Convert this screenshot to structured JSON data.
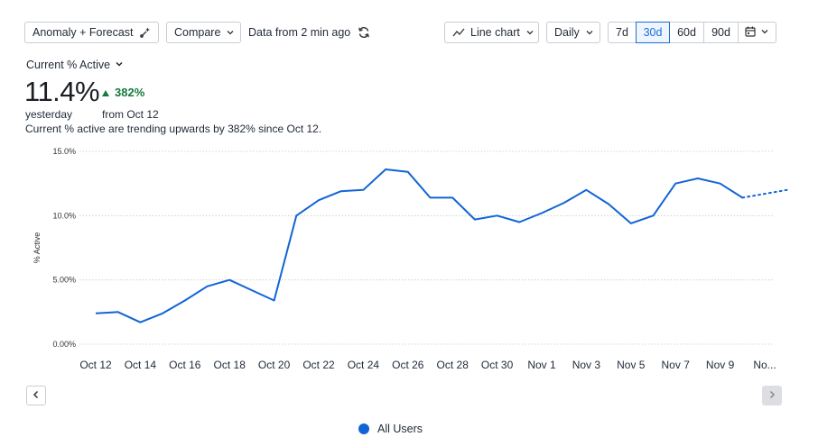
{
  "toolbar": {
    "anomaly_label": "Anomaly + Forecast",
    "compare_label": "Compare",
    "data_freshness": "Data from 2 min ago",
    "chart_type_label": "Line chart",
    "interval_label": "Daily",
    "ranges": [
      "7d",
      "30d",
      "60d",
      "90d"
    ],
    "active_range": "30d"
  },
  "metric": {
    "selector_label": "Current % Active",
    "value": "11.4%",
    "change": "382%",
    "value_caption": "yesterday",
    "change_caption": "from Oct 12",
    "summary": "Current % active are trending upwards by 382% since Oct 12."
  },
  "legend": {
    "label": "All Users",
    "color": "#1264d6"
  },
  "chart_data": {
    "type": "line",
    "ylabel": "% Active",
    "ylim": [
      0,
      15
    ],
    "yticks": [
      "0.00%",
      "5.00%",
      "10.0%",
      "15.0%"
    ],
    "ytick_values": [
      0,
      5,
      10,
      15
    ],
    "grid": true,
    "xticks": [
      "Oct 12",
      "Oct 14",
      "Oct 16",
      "Oct 18",
      "Oct 20",
      "Oct 22",
      "Oct 24",
      "Oct 26",
      "Oct 28",
      "Oct 30",
      "Nov 1",
      "Nov 3",
      "Nov 5",
      "Nov 7",
      "Nov 9",
      "No..."
    ],
    "series": [
      {
        "name": "All Users",
        "color": "#1264d6",
        "values": [
          2.4,
          2.5,
          1.7,
          2.4,
          3.4,
          4.5,
          5.0,
          4.2,
          3.4,
          10.0,
          11.2,
          11.9,
          12.0,
          13.6,
          13.4,
          11.4,
          11.4,
          9.7,
          10.0,
          9.5,
          10.2,
          11.0,
          12.0,
          10.9,
          9.4,
          10.0,
          12.5,
          12.9,
          12.5,
          11.4
        ],
        "forecast": [
          11.4,
          11.7,
          12.0
        ]
      }
    ]
  }
}
